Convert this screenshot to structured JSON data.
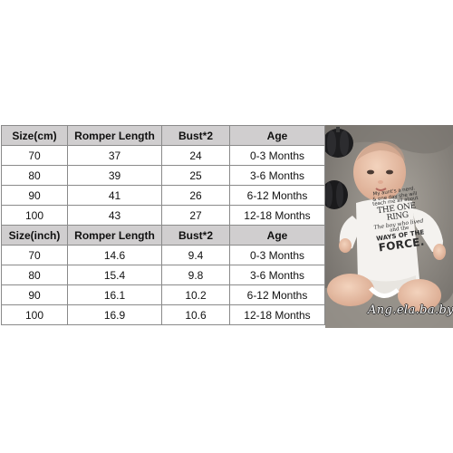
{
  "table": {
    "cm": {
      "headers": [
        "Size(cm)",
        "Romper Length",
        "Bust*2",
        "Age"
      ],
      "rows": [
        [
          "70",
          "37",
          "24",
          "0-3 Months"
        ],
        [
          "80",
          "39",
          "25",
          "3-6 Months"
        ],
        [
          "90",
          "41",
          "26",
          "6-12 Months"
        ],
        [
          "100",
          "43",
          "27",
          "12-18 Months"
        ]
      ]
    },
    "inch": {
      "headers": [
        "Size(inch)",
        "Romper Length",
        "Bust*2",
        "Age"
      ],
      "rows": [
        [
          "70",
          "14.6",
          "9.4",
          "0-3 Months"
        ],
        [
          "80",
          "15.4",
          "9.8",
          "3-6 Months"
        ],
        [
          "90",
          "16.1",
          "10.2",
          "6-12 Months"
        ],
        [
          "100",
          "16.9",
          "10.6",
          "12-18 Months"
        ]
      ]
    }
  },
  "photo": {
    "onesie_lines": [
      "My aunt's a nerd.",
      "& one day she will",
      "teach me all about",
      "THE ONE RING",
      "The boy who lived",
      "and the",
      "WAYS OF THE",
      "FORCE."
    ],
    "watermark": "Ang.ela.ba.by"
  },
  "colors": {
    "header_bg": "#d0cecf",
    "border": "#8a8a8a",
    "onesie": "#f4f2ef",
    "background_blanket": "#8e8a84"
  }
}
